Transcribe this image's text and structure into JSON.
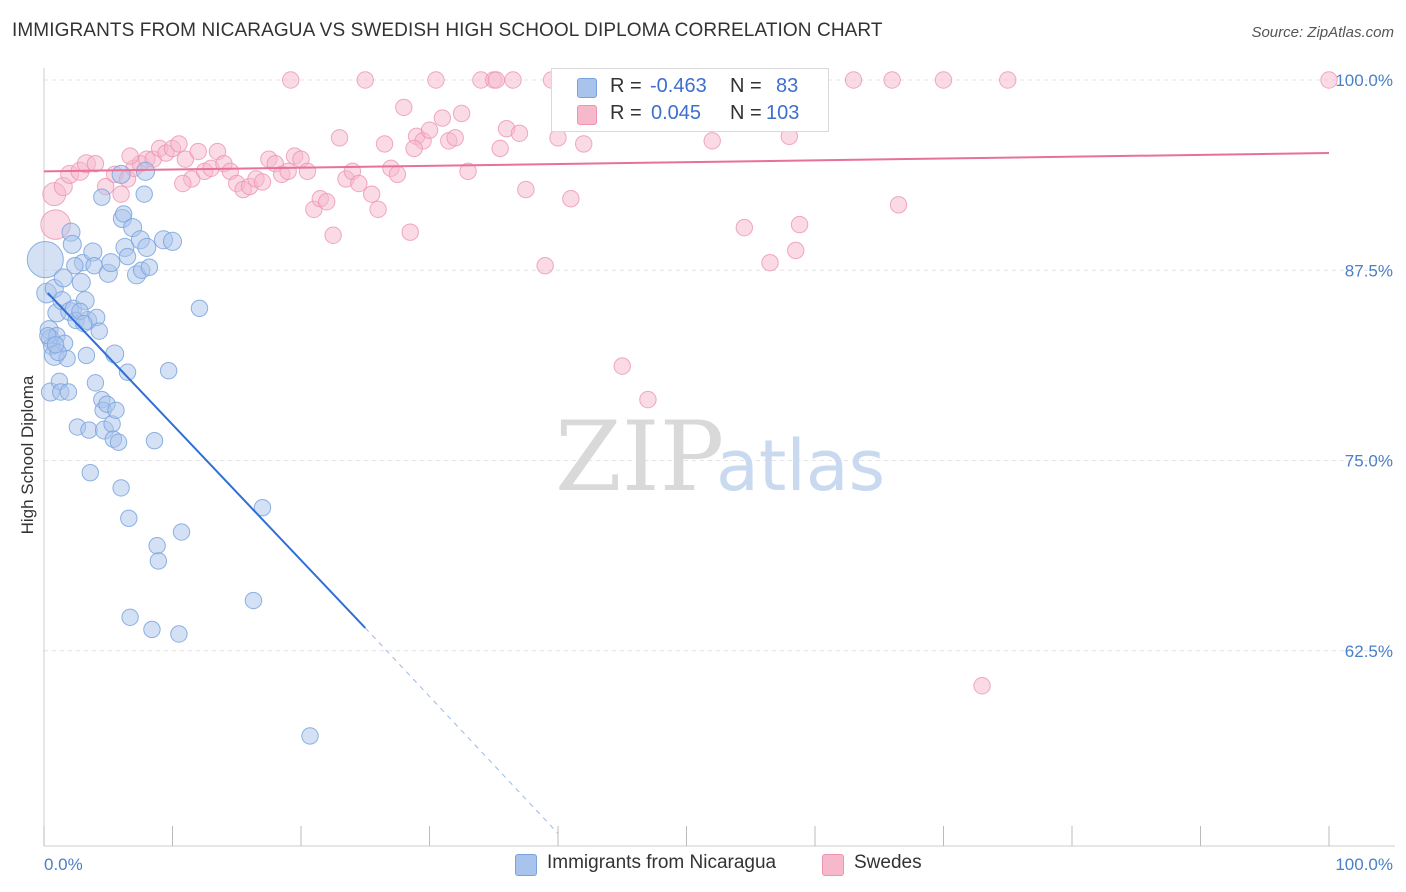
{
  "title": "IMMIGRANTS FROM NICARAGUA VS SWEDISH HIGH SCHOOL DIPLOMA CORRELATION CHART",
  "source": "Source: ZipAtlas.com",
  "watermark": {
    "zip": "ZIP",
    "atlas": "atlas"
  },
  "legend": {
    "series1": {
      "r_label": "R =",
      "r_value": "-0.463",
      "n_label": "N =",
      "n_value": "83"
    },
    "series2": {
      "r_label": "R =",
      "r_value": "0.045",
      "n_label": "N =",
      "n_value": "103"
    }
  },
  "bottom_legend": {
    "series1": "Immigrants from Nicaragua",
    "series2": "Swedes"
  },
  "colors": {
    "blue_fill": "#a9c4ec",
    "blue_stroke": "#7aa3de",
    "blue_line": "#2f6fd6",
    "pink_fill": "#f6b8cb",
    "pink_stroke": "#ee93b0",
    "pink_line": "#e8709a",
    "tick_label": "#4a7fc9",
    "grid": "#e4e4e4"
  },
  "chart_data": {
    "type": "scatter",
    "title": "IMMIGRANTS FROM NICARAGUA VS SWEDISH HIGH SCHOOL DIPLOMA CORRELATION CHART",
    "xlabel": "",
    "ylabel": "High School Diploma",
    "xlim": [
      0,
      100
    ],
    "ylim": [
      50,
      101
    ],
    "y_ticks": [
      62.5,
      75.0,
      87.5,
      100.0
    ],
    "y_tick_labels": [
      "62.5%",
      "75.0%",
      "87.5%",
      "100.0%"
    ],
    "x_tick_labels": [
      "0.0%",
      "100.0%"
    ],
    "series": [
      {
        "name": "Immigrants from Nicaragua",
        "color": "#a9c4ec",
        "trend": {
          "x": [
            0.3,
            25.0
          ],
          "y": [
            86.0,
            64.0
          ],
          "dashed_to": [
            40.0,
            50.5
          ]
        },
        "points": [
          [
            0.1,
            88.2,
            22
          ],
          [
            0.2,
            86.0,
            12
          ],
          [
            0.4,
            83.6,
            11
          ],
          [
            0.5,
            83.0,
            11
          ],
          [
            0.5,
            79.5,
            11
          ],
          [
            0.6,
            82.5,
            10
          ],
          [
            0.8,
            86.3,
            11
          ],
          [
            0.8,
            81.9,
            12
          ],
          [
            1.0,
            84.7,
            11
          ],
          [
            1.0,
            83.2,
            10
          ],
          [
            1.2,
            80.2,
            10
          ],
          [
            1.3,
            79.5,
            10
          ],
          [
            1.4,
            85.5,
            11
          ],
          [
            1.5,
            87.0,
            11
          ],
          [
            1.6,
            82.7,
            10
          ],
          [
            1.8,
            81.7,
            10
          ],
          [
            1.9,
            79.5,
            10
          ],
          [
            2.0,
            84.8,
            11
          ],
          [
            2.1,
            90.0,
            11
          ],
          [
            2.2,
            89.2,
            11
          ],
          [
            2.3,
            85.0,
            10
          ],
          [
            2.5,
            84.2,
            10
          ],
          [
            2.6,
            77.2,
            10
          ],
          [
            2.9,
            86.7,
            11
          ],
          [
            3.0,
            88.0,
            10
          ],
          [
            3.2,
            85.5,
            11
          ],
          [
            3.3,
            81.9,
            10
          ],
          [
            3.4,
            84.2,
            11
          ],
          [
            3.5,
            77.0,
            10
          ],
          [
            3.6,
            74.2,
            10
          ],
          [
            3.8,
            88.7,
            11
          ],
          [
            3.9,
            87.8,
            10
          ],
          [
            4.0,
            80.1,
            10
          ],
          [
            4.1,
            84.4,
            10
          ],
          [
            4.3,
            83.5,
            10
          ],
          [
            4.5,
            79.0,
            10
          ],
          [
            4.6,
            78.3,
            10
          ],
          [
            4.7,
            77.0,
            11
          ],
          [
            4.5,
            92.3,
            10
          ],
          [
            4.9,
            78.7,
            10
          ],
          [
            5.0,
            87.3,
            11
          ],
          [
            5.2,
            88.0,
            11
          ],
          [
            5.3,
            77.4,
            10
          ],
          [
            5.4,
            76.4,
            10
          ],
          [
            5.5,
            82.0,
            11
          ],
          [
            5.6,
            78.3,
            10
          ],
          [
            5.8,
            76.2,
            10
          ],
          [
            6.0,
            93.8,
            11
          ],
          [
            6.0,
            73.2,
            10
          ],
          [
            6.1,
            90.9,
            11
          ],
          [
            6.2,
            91.2,
            10
          ],
          [
            6.3,
            89.0,
            11
          ],
          [
            6.5,
            88.4,
            10
          ],
          [
            6.5,
            80.8,
            10
          ],
          [
            6.6,
            71.2,
            10
          ],
          [
            6.7,
            64.7,
            10
          ],
          [
            6.9,
            90.3,
            11
          ],
          [
            7.2,
            87.2,
            11
          ],
          [
            7.5,
            89.5,
            11
          ],
          [
            7.6,
            87.5,
            10
          ],
          [
            7.8,
            92.5,
            10
          ],
          [
            7.9,
            94.0,
            11
          ],
          [
            8.0,
            89.0,
            11
          ],
          [
            8.2,
            87.7,
            10
          ],
          [
            8.4,
            63.9,
            10
          ],
          [
            8.6,
            76.3,
            10
          ],
          [
            8.8,
            69.4,
            10
          ],
          [
            8.9,
            68.4,
            10
          ],
          [
            9.3,
            89.5,
            11
          ],
          [
            9.7,
            80.9,
            10
          ],
          [
            10.0,
            89.4,
            11
          ],
          [
            10.5,
            63.6,
            10
          ],
          [
            10.7,
            70.3,
            10
          ],
          [
            12.1,
            85.0,
            10
          ],
          [
            16.3,
            65.8,
            10
          ],
          [
            17.0,
            71.9,
            10
          ],
          [
            20.7,
            56.9,
            10
          ],
          [
            0.3,
            83.2,
            10
          ],
          [
            1.1,
            82.1,
            10
          ],
          [
            2.8,
            84.8,
            10
          ],
          [
            3.1,
            84.0,
            10
          ],
          [
            0.9,
            82.6,
            10
          ],
          [
            2.4,
            87.8,
            10
          ]
        ]
      },
      {
        "name": "Swedes",
        "color": "#f6b8cb",
        "trend": {
          "x": [
            0.0,
            100.0
          ],
          "y": [
            94.0,
            95.2
          ]
        },
        "points": [
          [
            0.8,
            92.5,
            14
          ],
          [
            0.9,
            90.5,
            18
          ],
          [
            1.5,
            93.0,
            11
          ],
          [
            2.0,
            93.8,
            11
          ],
          [
            2.8,
            94.0,
            11
          ],
          [
            3.3,
            94.5,
            11
          ],
          [
            4.0,
            94.5,
            10
          ],
          [
            4.8,
            93.0,
            10
          ],
          [
            5.5,
            93.8,
            10
          ],
          [
            6.0,
            92.5,
            10
          ],
          [
            6.5,
            93.5,
            10
          ],
          [
            7.0,
            94.2,
            10
          ],
          [
            7.5,
            94.5,
            10
          ],
          [
            8.0,
            94.8,
            10
          ],
          [
            8.5,
            94.8,
            10
          ],
          [
            9.0,
            95.5,
            10
          ],
          [
            9.5,
            95.2,
            10
          ],
          [
            10.0,
            95.5,
            10
          ],
          [
            10.5,
            95.8,
            10
          ],
          [
            11.0,
            94.8,
            10
          ],
          [
            11.5,
            93.5,
            10
          ],
          [
            12.0,
            95.3,
            10
          ],
          [
            12.5,
            94.0,
            10
          ],
          [
            13.0,
            94.2,
            10
          ],
          [
            13.5,
            95.3,
            10
          ],
          [
            14.0,
            94.5,
            10
          ],
          [
            14.5,
            94.0,
            10
          ],
          [
            15.0,
            93.2,
            10
          ],
          [
            15.5,
            92.8,
            10
          ],
          [
            16.0,
            93.0,
            10
          ],
          [
            16.5,
            93.5,
            10
          ],
          [
            17.0,
            93.3,
            10
          ],
          [
            17.5,
            94.8,
            10
          ],
          [
            18.0,
            94.5,
            10
          ],
          [
            18.5,
            93.8,
            10
          ],
          [
            19.0,
            94.0,
            10
          ],
          [
            19.5,
            95.0,
            10
          ],
          [
            20.0,
            94.8,
            10
          ],
          [
            20.5,
            94.0,
            10
          ],
          [
            21.0,
            91.5,
            10
          ],
          [
            21.5,
            92.2,
            10
          ],
          [
            22.0,
            92.0,
            10
          ],
          [
            22.5,
            89.8,
            10
          ],
          [
            23.0,
            96.2,
            10
          ],
          [
            23.5,
            93.5,
            10
          ],
          [
            24.0,
            94.0,
            10
          ],
          [
            24.5,
            93.2,
            10
          ],
          [
            25.0,
            100.0,
            10
          ],
          [
            25.5,
            92.5,
            10
          ],
          [
            26.0,
            91.5,
            10
          ],
          [
            26.5,
            95.8,
            10
          ],
          [
            27.0,
            94.2,
            10
          ],
          [
            27.5,
            93.8,
            10
          ],
          [
            28.0,
            98.2,
            10
          ],
          [
            28.5,
            90.0,
            10
          ],
          [
            29.0,
            96.3,
            10
          ],
          [
            29.5,
            96.0,
            10
          ],
          [
            30.0,
            96.7,
            10
          ],
          [
            30.5,
            100.0,
            10
          ],
          [
            31.0,
            97.5,
            10
          ],
          [
            31.5,
            96.0,
            10
          ],
          [
            32.0,
            96.2,
            10
          ],
          [
            32.5,
            97.8,
            10
          ],
          [
            33.0,
            94.0,
            10
          ],
          [
            34.0,
            100.0,
            10
          ],
          [
            35.0,
            100.0,
            10
          ],
          [
            35.5,
            95.5,
            10
          ],
          [
            36.0,
            96.8,
            10
          ],
          [
            36.5,
            100.0,
            10
          ],
          [
            37.0,
            96.5,
            10
          ],
          [
            37.5,
            92.8,
            10
          ],
          [
            39.0,
            87.8,
            10
          ],
          [
            40.0,
            96.2,
            10
          ],
          [
            41.0,
            92.2,
            10
          ],
          [
            42.0,
            95.8,
            10
          ],
          [
            45.0,
            81.2,
            10
          ],
          [
            47.0,
            79.0,
            10
          ],
          [
            48.0,
            100.0,
            10
          ],
          [
            50.0,
            100.0,
            10
          ],
          [
            52.0,
            96.0,
            10
          ],
          [
            54.0,
            100.0,
            10
          ],
          [
            54.5,
            90.3,
            10
          ],
          [
            56.5,
            88.0,
            10
          ],
          [
            57.0,
            100.0,
            10
          ],
          [
            58.0,
            96.3,
            10
          ],
          [
            58.5,
            88.8,
            10
          ],
          [
            58.8,
            90.5,
            10
          ],
          [
            60.0,
            100.0,
            10
          ],
          [
            63.0,
            100.0,
            10
          ],
          [
            66.0,
            100.0,
            10
          ],
          [
            66.5,
            91.8,
            10
          ],
          [
            70.0,
            100.0,
            10
          ],
          [
            73.0,
            60.2,
            10
          ],
          [
            75.0,
            100.0,
            10
          ],
          [
            100.0,
            100.0,
            10
          ],
          [
            10.8,
            93.2,
            10
          ],
          [
            39.5,
            100.0,
            10
          ],
          [
            19.2,
            100.0,
            10
          ],
          [
            28.8,
            95.5,
            10
          ],
          [
            35.2,
            100.0,
            10
          ],
          [
            44.0,
            100.0,
            10
          ],
          [
            55.0,
            100.0,
            10
          ],
          [
            6.7,
            95.0,
            10
          ]
        ]
      }
    ]
  }
}
